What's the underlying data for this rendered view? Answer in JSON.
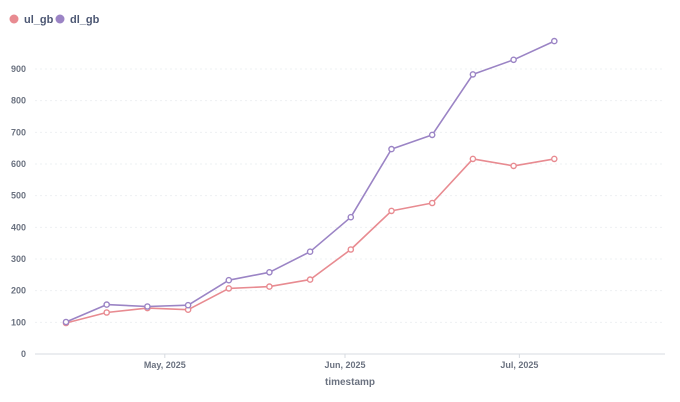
{
  "chart_data": {
    "type": "line",
    "xlabel": "timestamp",
    "ylabel": "",
    "ylim": [
      0,
      1000
    ],
    "y_ticks": [
      0,
      100,
      200,
      300,
      400,
      500,
      600,
      700,
      800,
      900
    ],
    "x_tick_labels": [
      {
        "label": "May, 2025",
        "date": "2025-05-01"
      },
      {
        "label": "Jun, 2025",
        "date": "2025-06-01"
      },
      {
        "label": "Jul, 2025",
        "date": "2025-07-01"
      }
    ],
    "x": [
      "2025-04-14",
      "2025-04-21",
      "2025-04-28",
      "2025-05-05",
      "2025-05-12",
      "2025-05-19",
      "2025-05-26",
      "2025-06-02",
      "2025-06-09",
      "2025-06-16",
      "2025-06-23",
      "2025-06-30",
      "2025-07-07",
      "2025-07-14"
    ],
    "series": [
      {
        "name": "ul_gb",
        "color": "#e88b91",
        "values": [
          98,
          131,
          145,
          140,
          207,
          213,
          235,
          330,
          452,
          477,
          616,
          594,
          616,
          null
        ]
      },
      {
        "name": "dl_gb",
        "color": "#9b84c5",
        "values": [
          101,
          156,
          150,
          154,
          233,
          258,
          323,
          432,
          647,
          692,
          883,
          929,
          988,
          null
        ]
      }
    ],
    "grid": "horizontal",
    "legend_position": "top-left"
  }
}
